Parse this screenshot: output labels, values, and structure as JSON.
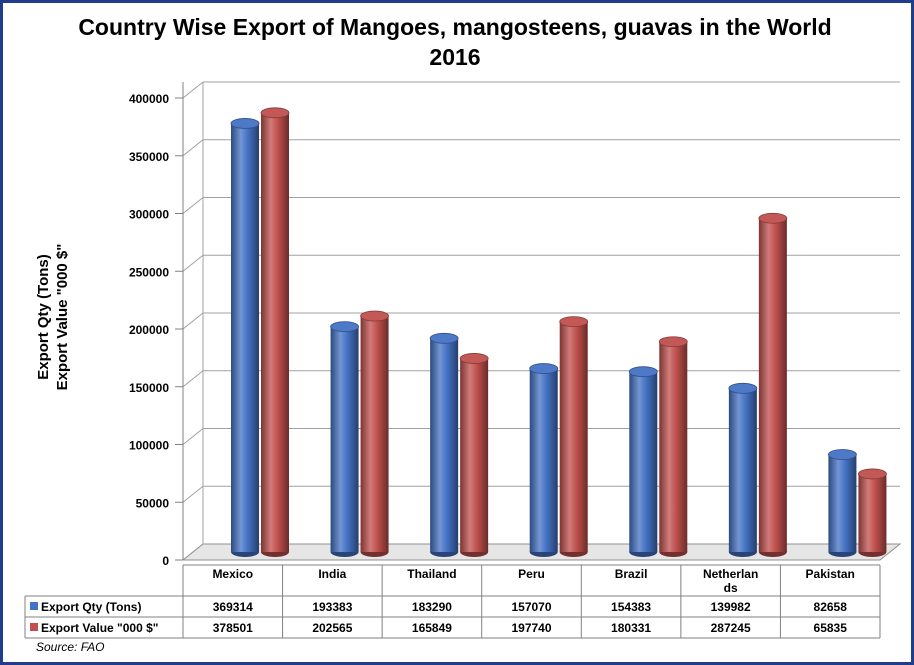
{
  "chart_data": {
    "type": "bar",
    "title": "Country Wise Export of Mangoes, mangosteens, guavas in the World 2016",
    "ylabel_lines": [
      "Export Qty (Tons)",
      "Export Value \"000 $\""
    ],
    "categories": [
      "Mexico",
      "India",
      "Thailand",
      "Peru",
      "Brazil",
      "Netherlands",
      "Pakistan"
    ],
    "category_labels": [
      [
        "Mexico"
      ],
      [
        "India"
      ],
      [
        "Thailand"
      ],
      [
        "Peru"
      ],
      [
        "Brazil"
      ],
      [
        "Netherlan",
        "ds"
      ],
      [
        "Pakistan"
      ]
    ],
    "series": [
      {
        "name": "Export Qty (Tons)",
        "color": "#4472c4",
        "values": [
          369314,
          193383,
          183290,
          157070,
          154383,
          139982,
          82658
        ]
      },
      {
        "name": "Export Value \"000 $\"",
        "color": "#c0504d",
        "values": [
          378501,
          202565,
          165849,
          197740,
          180331,
          287245,
          65835
        ]
      }
    ],
    "yticks": [
      0,
      50000,
      100000,
      150000,
      200000,
      250000,
      300000,
      350000,
      400000
    ],
    "ylim": [
      0,
      400000
    ],
    "grid": true,
    "legend": "data-table"
  },
  "source": "Source: FAO"
}
